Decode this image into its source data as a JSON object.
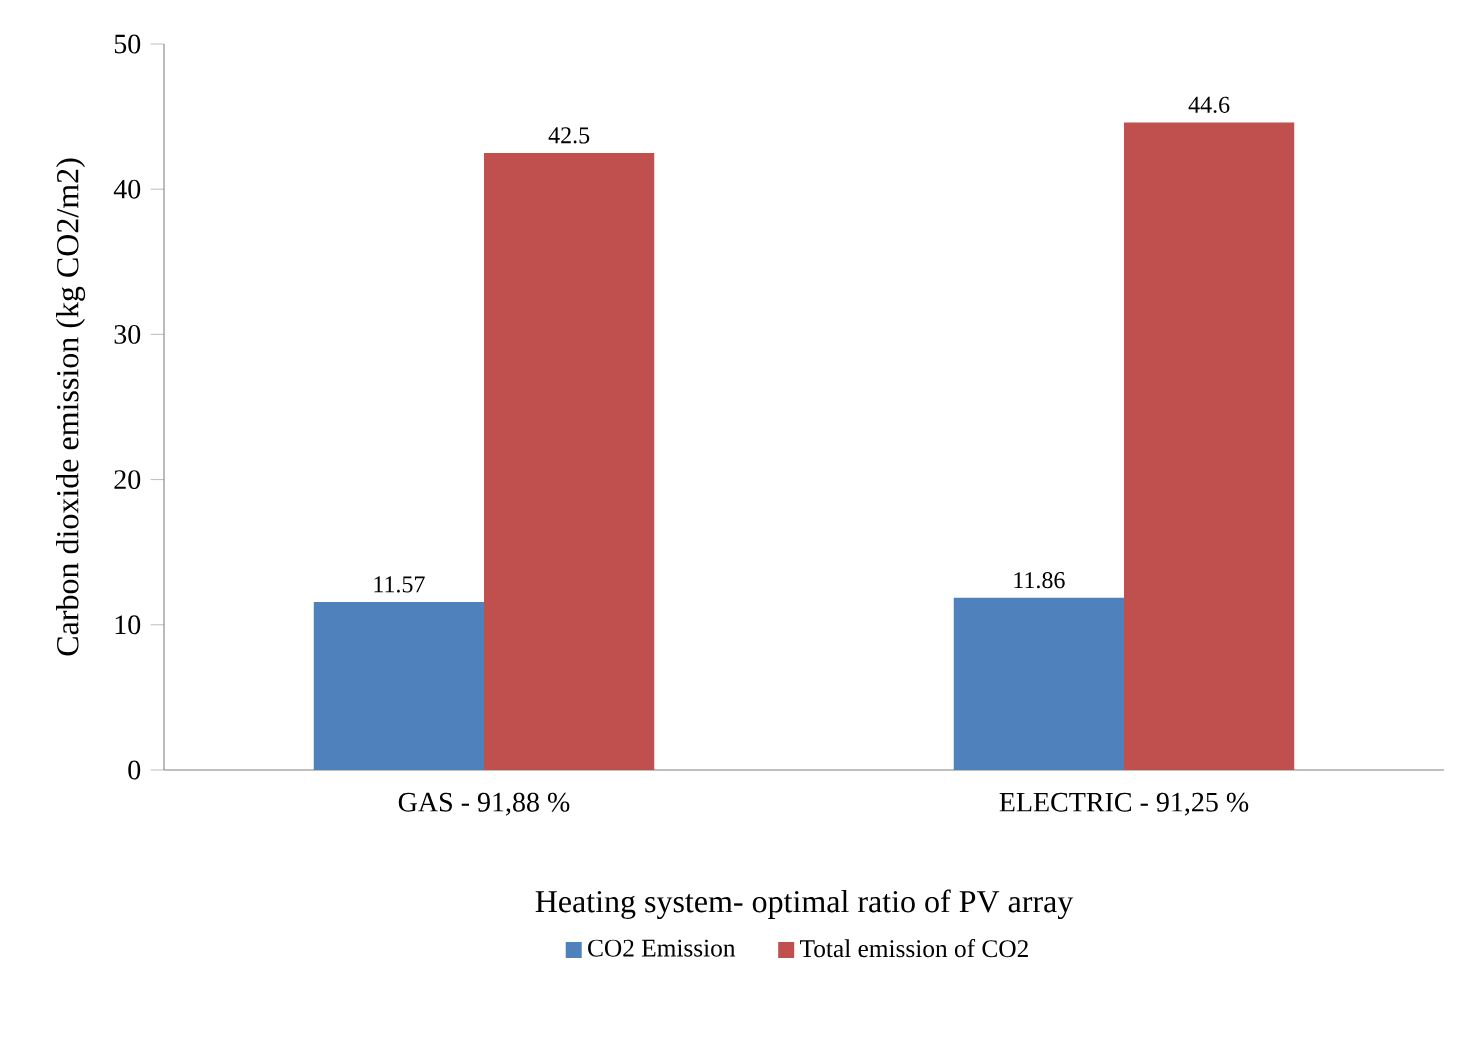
{
  "chart_data": {
    "type": "bar",
    "xlabel": "Heating system- optimal ratio of PV array",
    "ylabel": "Carbon dioxide emission  (kg CO2/m2)",
    "categories": [
      "GAS - 91,88 %",
      "ELECTRIC - 91,25 %"
    ],
    "series": [
      {
        "name": "CO2 Emission",
        "color": "#4f81bd",
        "values": [
          11.57,
          11.86
        ]
      },
      {
        "name": "Total emission of CO2",
        "color": "#c0504d",
        "values": [
          42.5,
          44.6
        ]
      }
    ],
    "ylim": [
      0,
      50
    ],
    "yticks": [
      0,
      10,
      20,
      30,
      40,
      50
    ],
    "grid": false,
    "legend": "bottom",
    "data_labels": true
  }
}
